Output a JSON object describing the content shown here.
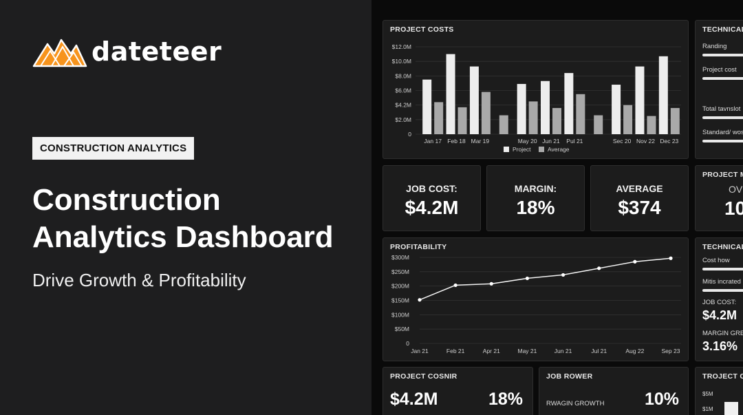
{
  "brand": {
    "name": "dateteer",
    "accent": "#f7941d"
  },
  "hero": {
    "badge": "CONSTRUCTION ANALYTICS",
    "title_line1": "Construction",
    "title_line2": "Analytics Dashboard",
    "subtitle": "Drive Growth & Profitability"
  },
  "project_costs": {
    "title": "PROJECT COSTS",
    "legend": [
      "Project",
      "Average"
    ]
  },
  "kpis": [
    {
      "label": "JOB COST:",
      "value": "$4.2M"
    },
    {
      "label": "MARGIN:",
      "value": "18%"
    },
    {
      "label": "AVERAGE",
      "value": "$374"
    }
  ],
  "profitability": {
    "title": "PROFITABILITY"
  },
  "technical_top": {
    "title": "TECHNICAL",
    "items": [
      "Randing",
      "Project cost",
      "Total tavnslot",
      "Standard/ wos"
    ]
  },
  "project_m": {
    "title": "PROJECT M",
    "line1": "OVE",
    "line2": "10"
  },
  "technical_mid": {
    "title": "TECHNICAL",
    "items": [
      "Cost how",
      "Mitis incrated"
    ],
    "job_cost_label": "JOB COST:",
    "job_cost_value": "$4.2M",
    "margin_label": "MARGIN GRE",
    "margin_value": "3.16%"
  },
  "bottom_panels": {
    "p1": {
      "title": "PROJECT COSNIR",
      "value1": "$4.2M",
      "value2": "18%"
    },
    "p2": {
      "title": "JOB ROWER",
      "label": "RWAGIN GROWTH",
      "value": "10%"
    },
    "p3": {
      "title": "TROJECT CO",
      "ticks": [
        "$5M",
        "$1M"
      ]
    }
  },
  "chart_data": [
    {
      "type": "bar",
      "title": "PROJECT COSTS",
      "categories": [
        "Jan 17",
        "Feb 18",
        "Mar 19",
        "",
        "May 20",
        "Jun 21",
        "Pul 21",
        "",
        "Sec 20",
        "Nov 22",
        "Dec 23"
      ],
      "series": [
        {
          "name": "Project",
          "values": [
            7.5,
            11.0,
            9.3,
            null,
            6.9,
            7.3,
            8.4,
            null,
            6.8,
            9.3,
            10.7
          ]
        },
        {
          "name": "Average",
          "values": [
            4.4,
            3.7,
            5.8,
            2.6,
            4.5,
            3.6,
            5.5,
            2.6,
            4.0,
            2.5,
            3.6
          ]
        }
      ],
      "yticks": [
        "0",
        "$2.0M",
        "$4.2M",
        "$6.0M",
        "$8.0M",
        "$10.0M",
        "$12.0M"
      ],
      "ylim": [
        0,
        12
      ],
      "legend": "bottom",
      "grid": true,
      "colors": {
        "Project": "#ededed",
        "Average": "#a9a9a9"
      }
    },
    {
      "type": "line",
      "title": "PROFITABILITY",
      "categories": [
        "Jan 21",
        "Feb 21",
        "Apr 21",
        "May 21",
        "Jun 21",
        "Jul 21",
        "Aug 22",
        "Sep 23"
      ],
      "values": [
        152,
        203,
        208,
        227,
        239,
        262,
        285,
        297
      ],
      "yticks": [
        "0",
        "$50M",
        "$100M",
        "$150M",
        "$200M",
        "$250M",
        "$300M"
      ],
      "ylim": [
        0,
        300
      ],
      "grid": true
    }
  ]
}
